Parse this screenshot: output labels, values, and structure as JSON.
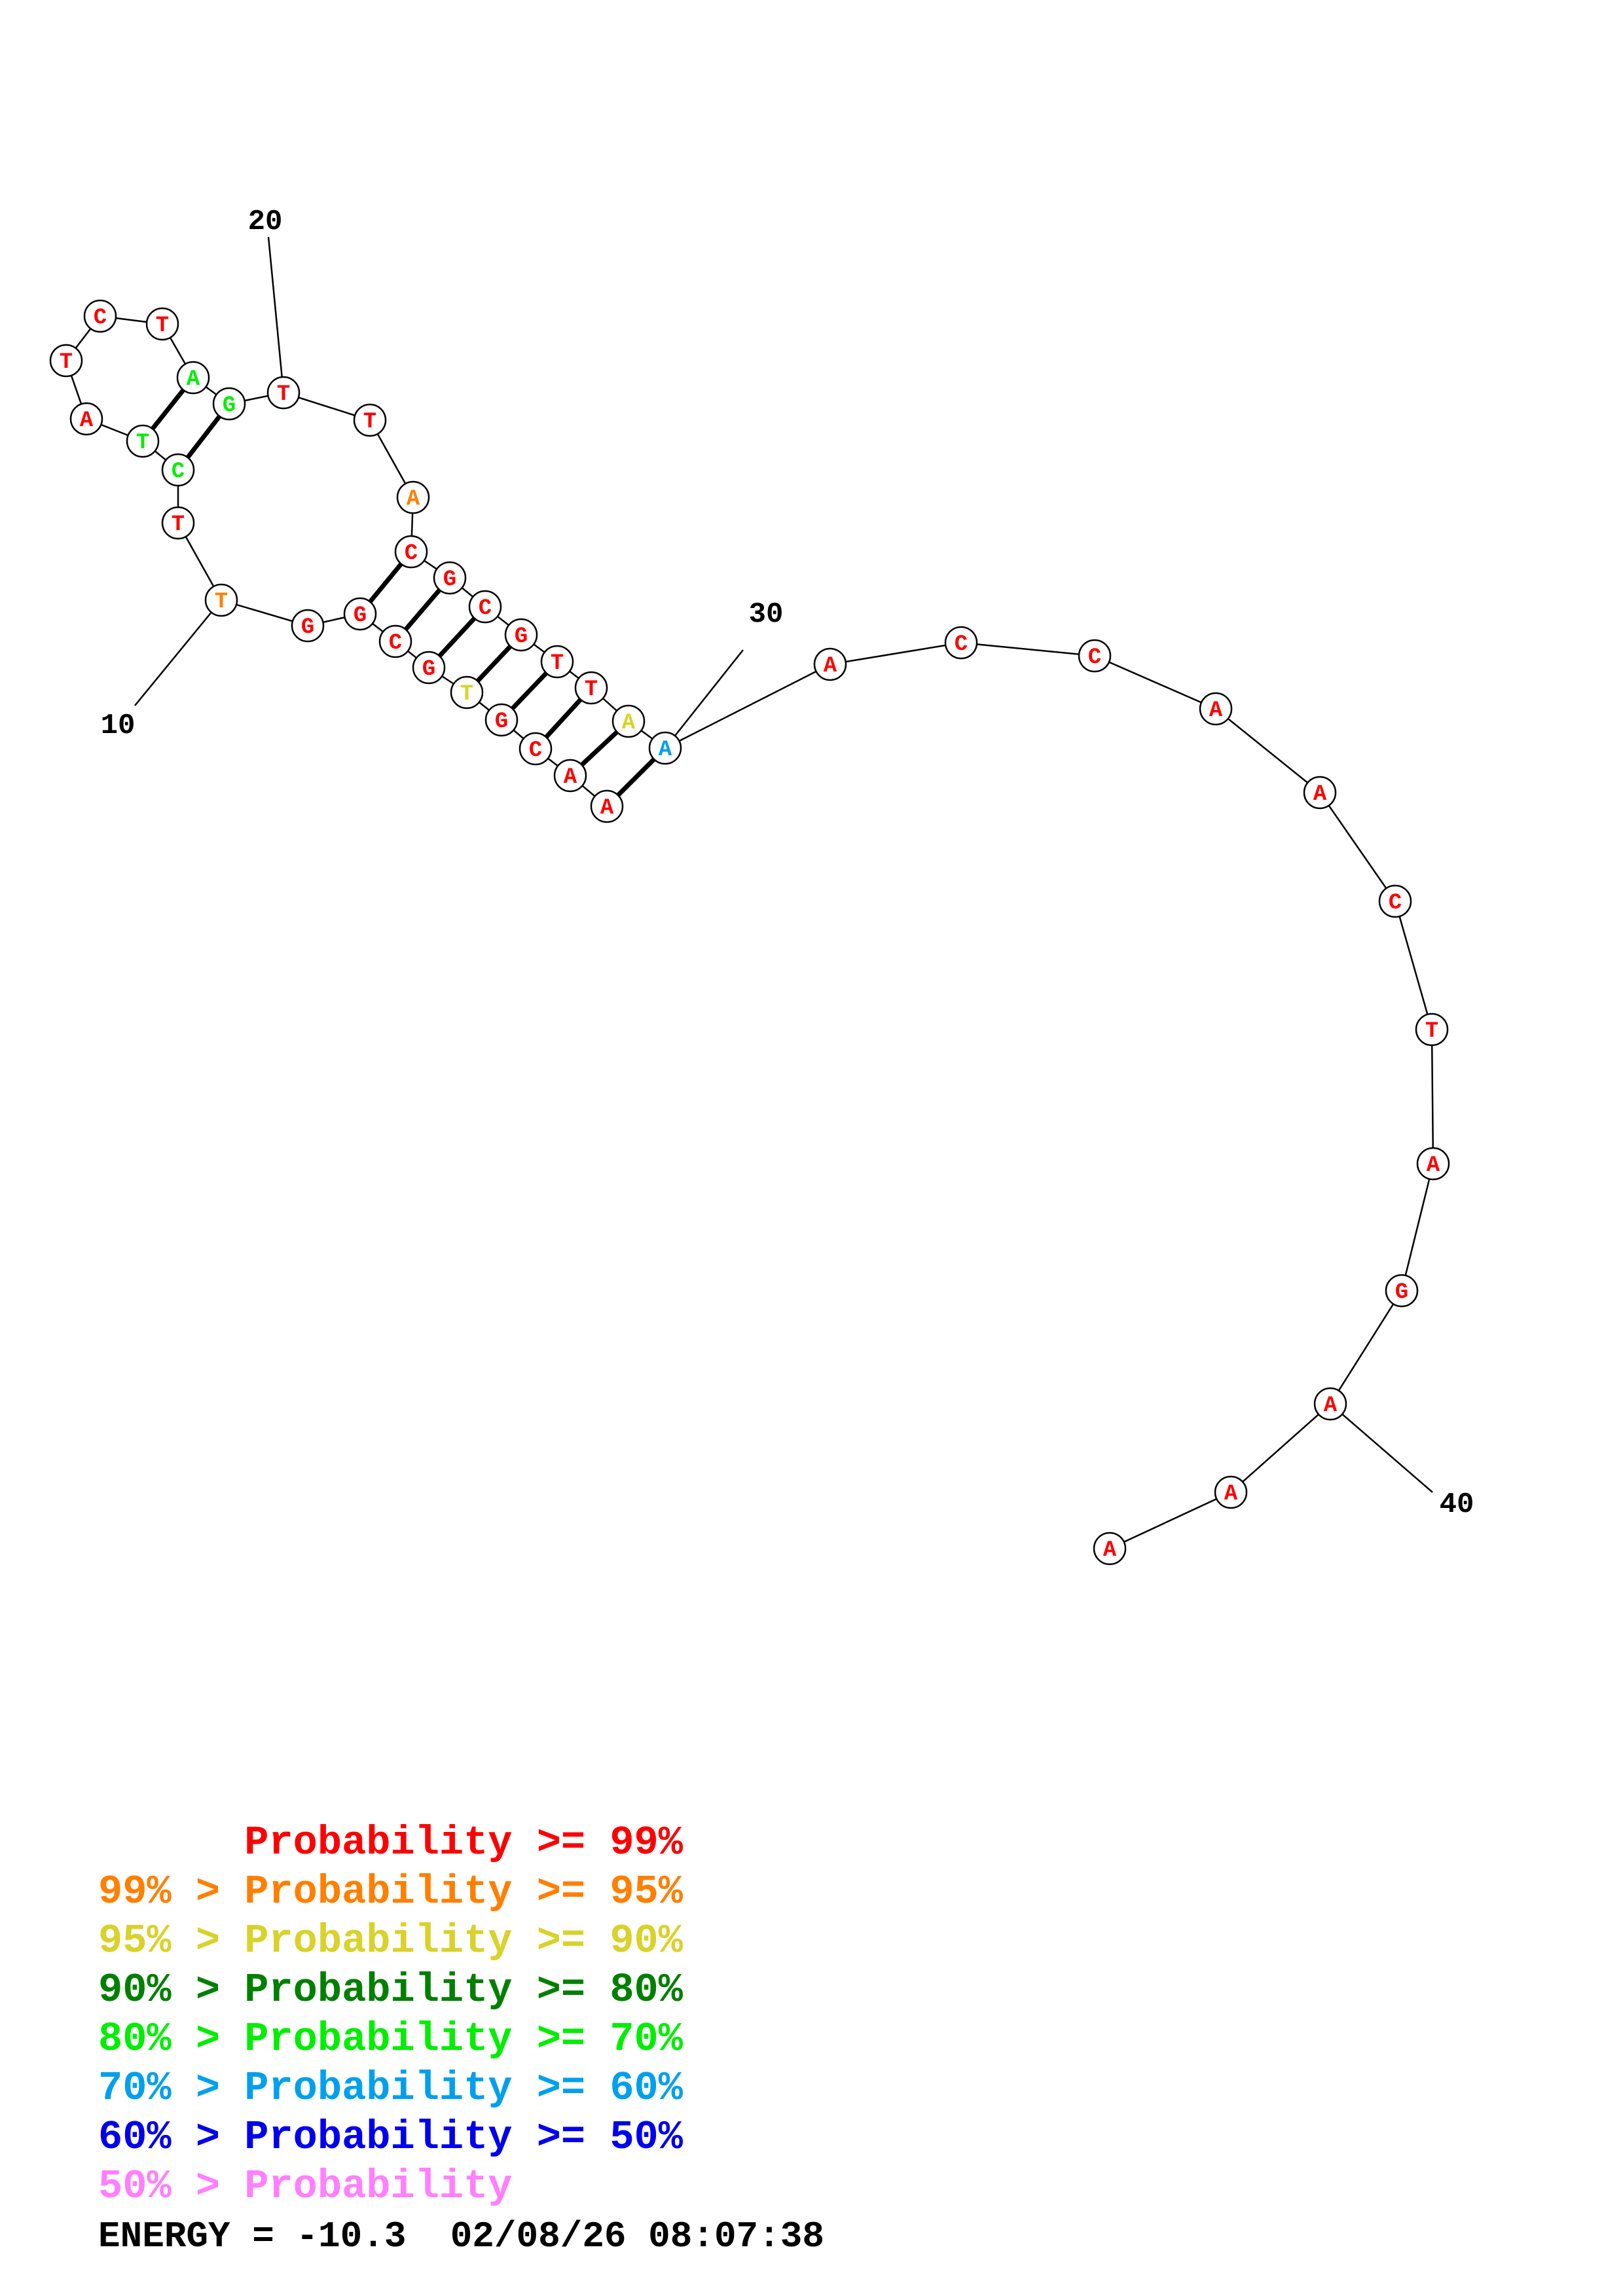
{
  "colors": {
    "p99": "#ff0000",
    "p95": "#ff7f00",
    "p90": "#d9d22a",
    "p80": "#008000",
    "p70": "#00ee00",
    "p60": "#00a0ee",
    "p50": "#0000ee",
    "plt50": "#ff7fff"
  },
  "sequence": [
    {
      "n": 1,
      "base": "A",
      "color": "p99"
    },
    {
      "n": 2,
      "base": "A",
      "color": "p99"
    },
    {
      "n": 3,
      "base": "C",
      "color": "p99"
    },
    {
      "n": 4,
      "base": "G",
      "color": "p99"
    },
    {
      "n": 5,
      "base": "T",
      "color": "p90"
    },
    {
      "n": 6,
      "base": "G",
      "color": "p99"
    },
    {
      "n": 7,
      "base": "C",
      "color": "p99"
    },
    {
      "n": 8,
      "base": "G",
      "color": "p99"
    },
    {
      "n": 9,
      "base": "G",
      "color": "p99"
    },
    {
      "n": 10,
      "base": "T",
      "color": "p95"
    },
    {
      "n": 11,
      "base": "T",
      "color": "p99"
    },
    {
      "n": 12,
      "base": "C",
      "color": "p70"
    },
    {
      "n": 13,
      "base": "T",
      "color": "p70"
    },
    {
      "n": 14,
      "base": "A",
      "color": "p99"
    },
    {
      "n": 15,
      "base": "T",
      "color": "p99"
    },
    {
      "n": 16,
      "base": "C",
      "color": "p99"
    },
    {
      "n": 17,
      "base": "T",
      "color": "p99"
    },
    {
      "n": 18,
      "base": "A",
      "color": "p70"
    },
    {
      "n": 19,
      "base": "G",
      "color": "p70"
    },
    {
      "n": 20,
      "base": "T",
      "color": "p99"
    },
    {
      "n": 21,
      "base": "T",
      "color": "p99"
    },
    {
      "n": 22,
      "base": "A",
      "color": "p95"
    },
    {
      "n": 23,
      "base": "C",
      "color": "p99"
    },
    {
      "n": 24,
      "base": "G",
      "color": "p99"
    },
    {
      "n": 25,
      "base": "C",
      "color": "p99"
    },
    {
      "n": 26,
      "base": "G",
      "color": "p99"
    },
    {
      "n": 27,
      "base": "T",
      "color": "p99"
    },
    {
      "n": 28,
      "base": "T",
      "color": "p99"
    },
    {
      "n": 29,
      "base": "A",
      "color": "p90"
    },
    {
      "n": 30,
      "base": "A",
      "color": "p60"
    },
    {
      "n": 31,
      "base": "A",
      "color": "p99"
    },
    {
      "n": 32,
      "base": "C",
      "color": "p99"
    },
    {
      "n": 33,
      "base": "C",
      "color": "p99"
    },
    {
      "n": 34,
      "base": "A",
      "color": "p99"
    },
    {
      "n": 35,
      "base": "A",
      "color": "p99"
    },
    {
      "n": 36,
      "base": "C",
      "color": "p99"
    },
    {
      "n": 37,
      "base": "T",
      "color": "p99"
    },
    {
      "n": 38,
      "base": "A",
      "color": "p99"
    },
    {
      "n": 39,
      "base": "G",
      "color": "p99"
    },
    {
      "n": 40,
      "base": "A",
      "color": "p99"
    },
    {
      "n": 41,
      "base": "A",
      "color": "p99"
    },
    {
      "n": 42,
      "base": "A",
      "color": "p99"
    }
  ],
  "pairs": [
    [
      12,
      19
    ],
    [
      13,
      18
    ],
    [
      1,
      30
    ],
    [
      2,
      29
    ],
    [
      3,
      28
    ],
    [
      4,
      27
    ],
    [
      5,
      26
    ],
    [
      6,
      25
    ],
    [
      7,
      24
    ],
    [
      8,
      23
    ]
  ],
  "position_labels": [
    {
      "n": 10,
      "text": "10"
    },
    {
      "n": 20,
      "text": "20"
    },
    {
      "n": 30,
      "text": "30"
    },
    {
      "n": 40,
      "text": "40"
    }
  ],
  "legend": [
    {
      "prefix": "",
      "text": "Probability >= 99%",
      "color": "p99"
    },
    {
      "prefix": "99% > ",
      "text": "Probability >= 95%",
      "color": "p95"
    },
    {
      "prefix": "95% > ",
      "text": "Probability >= 90%",
      "color": "p90"
    },
    {
      "prefix": "90% > ",
      "text": "Probability >= 80%",
      "color": "p80"
    },
    {
      "prefix": "80% > ",
      "text": "Probability >= 70%",
      "color": "p70"
    },
    {
      "prefix": "70% > ",
      "text": "Probability >= 60%",
      "color": "p60"
    },
    {
      "prefix": "60% > ",
      "text": "Probability >= 50%",
      "color": "p50"
    },
    {
      "prefix": "50% > ",
      "text": "Probability",
      "color": "plt50"
    }
  ],
  "energy": "ENERGY = -10.3  02/08/26 08:07:38"
}
